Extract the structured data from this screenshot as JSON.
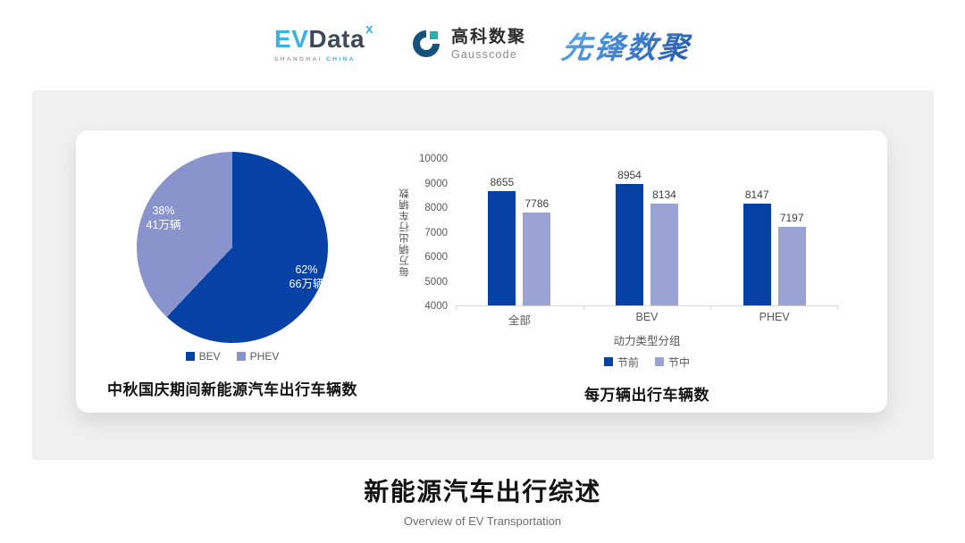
{
  "header": {
    "evdata": {
      "ev": "EV",
      "data": "Data",
      "x_mark": "x",
      "tagline_left": "SHANGHAI",
      "tagline_right": "CHINA"
    },
    "gausscode": {
      "cn": "高科数聚",
      "en": "Gausscode"
    },
    "pioneer": {
      "text": "先锋数聚"
    }
  },
  "colors": {
    "primary_dark_blue": "#0641a6",
    "pie_light_blue": "#8a94cc",
    "bar_light_blue": "#9aa3d4",
    "panel_bg": "#f0f0f0",
    "card_bg": "#ffffff",
    "axis_gray": "#d9d9d9",
    "label_gray": "#595959",
    "evdata_cyan": "#38b3e3",
    "evdata_slate": "#3e4a5a",
    "gausscode_navy": "#16537c",
    "gausscode_teal": "#24b0ae",
    "pioneer_blue_start": "#55a4e8",
    "pioneer_blue_end": "#2a5fb4"
  },
  "chart_data": [
    {
      "type": "pie",
      "title": "中秋国庆期间新能源汽车出行车辆数",
      "start": "top-clockwise",
      "slices": [
        {
          "label": "BEV",
          "percent": 62,
          "percent_label": "62%",
          "value_label": "66万辆",
          "color": "#0641a6"
        },
        {
          "label": "PHEV",
          "percent": 38,
          "percent_label": "38%",
          "value_label": "41万辆",
          "color": "#8a94cc"
        }
      ],
      "legend_position": "bottom"
    },
    {
      "type": "bar",
      "title": "每万辆出行车辆数",
      "categories": [
        "全部",
        "BEV",
        "PHEV"
      ],
      "series": [
        {
          "name": "节前",
          "values": [
            8655,
            8954,
            8147
          ],
          "color": "#0641a6"
        },
        {
          "name": "节中",
          "values": [
            7786,
            8134,
            7197
          ],
          "color": "#9aa3d4"
        }
      ],
      "xlabel": "动力类型分组",
      "ylabel": "每万辆出行车辆数",
      "ylim": [
        4000,
        10000
      ],
      "ytick_step": 1000,
      "grid": false,
      "legend_position": "bottom"
    }
  ],
  "footer": {
    "title": "新能源汽车出行综述",
    "subtitle": "Overview of EV Transportation"
  }
}
